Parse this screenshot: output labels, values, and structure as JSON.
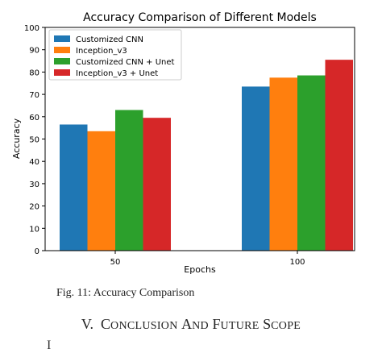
{
  "chart_data": {
    "type": "bar",
    "title": "Accuracy Comparison of Different Models",
    "xlabel": "Epochs",
    "ylabel": "Accuracy",
    "categories": [
      "50",
      "100"
    ],
    "ylim": [
      0,
      100
    ],
    "yticks": [
      "0",
      "10",
      "20",
      "30",
      "40",
      "50",
      "60",
      "70",
      "80",
      "90",
      "100"
    ],
    "legend_position": "top-left",
    "grid": false,
    "series": [
      {
        "name": "Customized CNN",
        "values": [
          56.5,
          73.5
        ],
        "color": "#1f77b4"
      },
      {
        "name": "Inception_v3",
        "values": [
          53.5,
          77.5
        ],
        "color": "#ff7f0e"
      },
      {
        "name": "Customized CNN + Unet",
        "values": [
          63.0,
          78.5
        ],
        "color": "#2ca02c"
      },
      {
        "name": "Inception_v3 + Unet",
        "values": [
          59.5,
          85.5
        ],
        "color": "#d62728"
      }
    ]
  },
  "caption": "Fig. 11: Accuracy Comparison",
  "section_heading": {
    "numeral": "V.",
    "w1_first": "C",
    "w1_rest": "ONCLUSION",
    "w2_first": "A",
    "w2_rest": "ND",
    "w3_first": "F",
    "w3_rest": "UTURE",
    "w4_first": "S",
    "w4_rest": "COPE"
  },
  "partial_text": "I                   "
}
